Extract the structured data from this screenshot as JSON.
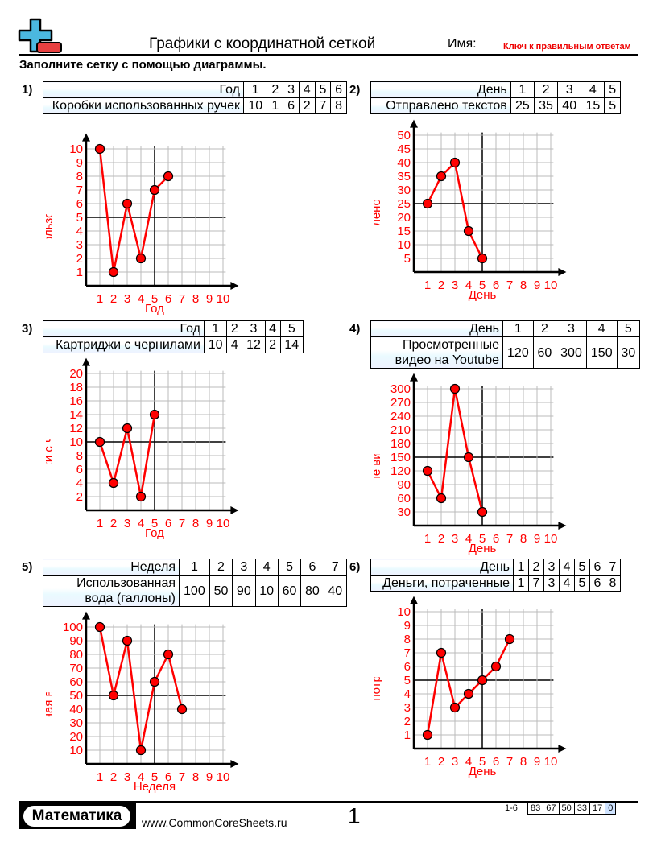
{
  "header": {
    "title": "Графики с координатной сеткой",
    "name_label": "Имя:",
    "answer_key": "Ключ к правильным ответам",
    "instructions": "Заполните сетку с помощью диаграммы."
  },
  "colors": {
    "line": "#ff0000",
    "point": "#ff0000",
    "labels": "#ff0000",
    "grid": "#bbbbbb",
    "logo_blue": "#4bb8e0",
    "logo_red": "#e84040"
  },
  "chart_data": [
    {
      "number": "1)",
      "type": "line",
      "row_label_x": "Год",
      "row_label_y": "Коробки использованных ручек",
      "xlabel": "Год",
      "ylabel": "Коробки использованных ручек",
      "x": [
        1,
        2,
        3,
        4,
        5,
        6
      ],
      "y": [
        10,
        1,
        6,
        2,
        7,
        8
      ],
      "xticks": [
        "1",
        "2",
        "3",
        "4",
        "5",
        "6",
        "7",
        "8",
        "9",
        "10"
      ],
      "yticks": [
        "1",
        "2",
        "3",
        "4",
        "5",
        "6",
        "7",
        "8",
        "9",
        "10"
      ],
      "ystep": 1,
      "ylim": [
        0,
        10
      ],
      "xlim": [
        0,
        10
      ]
    },
    {
      "number": "2)",
      "type": "line",
      "row_label_x": "День",
      "row_label_y": "Отправлено текстов",
      "xlabel": "День",
      "ylabel": "Отправлено текстов",
      "x": [
        1,
        2,
        3,
        4,
        5
      ],
      "y": [
        25,
        35,
        40,
        15,
        5
      ],
      "xticks": [
        "1",
        "2",
        "3",
        "4",
        "5",
        "6",
        "7",
        "8",
        "9",
        "10"
      ],
      "yticks": [
        "5",
        "10",
        "15",
        "20",
        "25",
        "30",
        "35",
        "40",
        "45",
        "50"
      ],
      "ystep": 5,
      "ylim": [
        0,
        50
      ],
      "xlim": [
        0,
        10
      ]
    },
    {
      "number": "3)",
      "type": "line",
      "row_label_x": "Год",
      "row_label_y": "Картриджи с чернилами",
      "xlabel": "Год",
      "ylabel": "Картриджи с чернилами",
      "x": [
        1,
        2,
        3,
        4,
        5
      ],
      "y": [
        10,
        4,
        12,
        2,
        14
      ],
      "xticks": [
        "1",
        "2",
        "3",
        "4",
        "5",
        "6",
        "7",
        "8",
        "9",
        "10"
      ],
      "yticks": [
        "2",
        "4",
        "6",
        "8",
        "10",
        "12",
        "14",
        "16",
        "18",
        "20"
      ],
      "ystep": 2,
      "ylim": [
        0,
        20
      ],
      "xlim": [
        0,
        10
      ]
    },
    {
      "number": "4)",
      "type": "line",
      "row_label_x": "День",
      "row_label_y": "Просмотренные видео на Youtube",
      "xlabel": "День",
      "ylabel": "Просмотренные видео на Youtube",
      "x": [
        1,
        2,
        3,
        4,
        5
      ],
      "y": [
        120,
        60,
        300,
        150,
        30
      ],
      "xticks": [
        "1",
        "2",
        "3",
        "4",
        "5",
        "6",
        "7",
        "8",
        "9",
        "10"
      ],
      "yticks": [
        "30",
        "60",
        "90",
        "120",
        "150",
        "180",
        "210",
        "240",
        "270",
        "300"
      ],
      "ystep": 30,
      "ylim": [
        0,
        300
      ],
      "xlim": [
        0,
        10
      ]
    },
    {
      "number": "5)",
      "type": "line",
      "row_label_x": "Неделя",
      "row_label_y": "Использованная вода (галлоны)",
      "xlabel": "Неделя",
      "ylabel": "Использованная вода (галлоны)",
      "x": [
        1,
        2,
        3,
        4,
        5,
        6,
        7
      ],
      "y": [
        100,
        50,
        90,
        10,
        60,
        80,
        40
      ],
      "xticks": [
        "1",
        "2",
        "3",
        "4",
        "5",
        "6",
        "7",
        "8",
        "9",
        "10"
      ],
      "yticks": [
        "10",
        "20",
        "30",
        "40",
        "50",
        "60",
        "70",
        "80",
        "90",
        "100"
      ],
      "ystep": 10,
      "ylim": [
        0,
        100
      ],
      "xlim": [
        0,
        10
      ]
    },
    {
      "number": "6)",
      "type": "line",
      "row_label_x": "День",
      "row_label_y": "Деньги, потраченные",
      "xlabel": "День",
      "ylabel": "Деньги, потраченные",
      "x": [
        1,
        2,
        3,
        4,
        5,
        6,
        7
      ],
      "y": [
        1,
        7,
        3,
        4,
        5,
        6,
        8
      ],
      "xticks": [
        "1",
        "2",
        "3",
        "4",
        "5",
        "6",
        "7",
        "8",
        "9",
        "10"
      ],
      "yticks": [
        "1",
        "2",
        "3",
        "4",
        "5",
        "6",
        "7",
        "8",
        "9",
        "10"
      ],
      "ystep": 1,
      "ylim": [
        0,
        10
      ],
      "xlim": [
        0,
        10
      ]
    }
  ],
  "footer": {
    "logo_text": "Математика",
    "site": "www.CommonCoreSheets.ru",
    "page": "1",
    "range": "1-6",
    "scores": [
      "83",
      "67",
      "50",
      "33",
      "17",
      "0"
    ]
  }
}
